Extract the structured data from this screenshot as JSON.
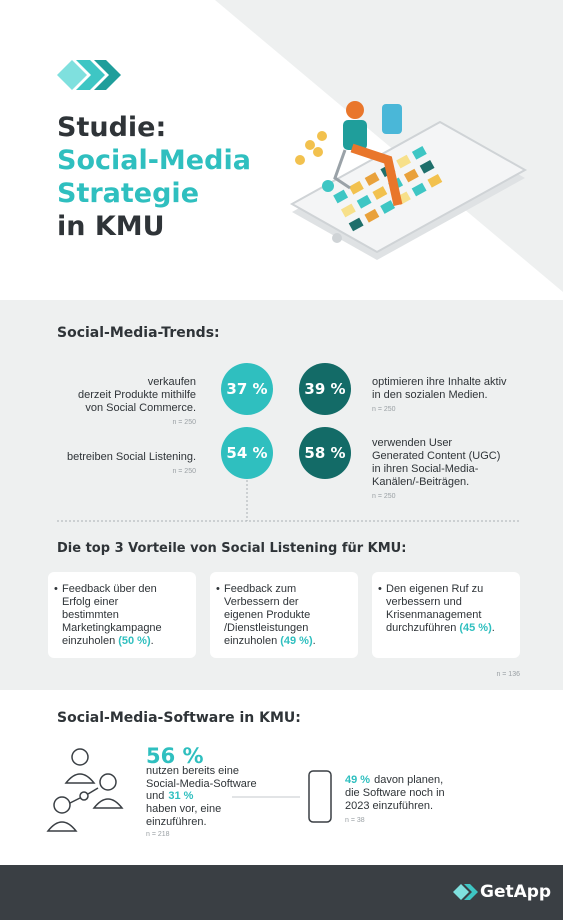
{
  "header": {
    "title_lines": [
      "Studie:",
      "Social-Media",
      "Strategie",
      "in KMU"
    ]
  },
  "trends": {
    "title": "Social-Media-Trends:",
    "items": [
      {
        "value": "37 %",
        "lines": [
          "verkaufen",
          "derzeit Produkte mithilfe",
          "von  Social Commerce."
        ],
        "n": "n = 250"
      },
      {
        "value": "39 %",
        "lines": [
          "optimieren ihre Inhalte aktiv",
          "in den sozialen Medien."
        ],
        "n": "n = 250"
      },
      {
        "value": "54 %",
        "lines": [
          "betreiben Social Listening."
        ],
        "n": "n = 250"
      },
      {
        "value": "58 %",
        "lines": [
          "verwenden User",
          "Generated Content (UGC)",
          "in ihren Social-Media-",
          "Kanälen/-Beiträgen."
        ],
        "n": "n = 250"
      }
    ]
  },
  "benefits": {
    "title": "Die top 3 Vorteile von Social Listening für KMU:",
    "cards": [
      {
        "lines": [
          "Feedback über den",
          "Erfolg einer",
          "bestimmten",
          "Marketingkampagne",
          "einzuholen"
        ],
        "highlight": "(50 %)",
        "end": "."
      },
      {
        "lines": [
          "Feedback zum",
          "Verbessern der",
          "eigenen Produkte",
          "/Dienstleistungen",
          "einzuholen"
        ],
        "highlight": "(49 %)",
        "end": "."
      },
      {
        "lines": [
          "Den eigenen Ruf zu",
          "verbessern und",
          "Krisenmanagement",
          "durchzuführen"
        ],
        "highlight": "(45 %)",
        "end": "."
      }
    ],
    "n": "n = 136"
  },
  "software": {
    "title": "Social-Media-Software in KMU:",
    "share": "56 %",
    "lines": [
      "nutzen bereits eine",
      "Social-Media-Software"
    ],
    "and": "und",
    "plan_share": "31 %",
    "plan_lines": [
      "haben vor, eine",
      "einzuführen."
    ],
    "n": "n = 218",
    "year_share": "49 %",
    "year_lines": [
      "davon planen,",
      "die Software noch in",
      "2023 einzuführen."
    ],
    "year_n": "n = 38"
  },
  "footer": {
    "brand": "GetApp"
  }
}
